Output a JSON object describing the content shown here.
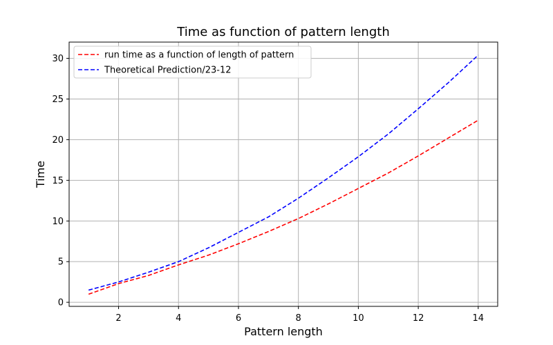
{
  "chart_data": {
    "type": "line",
    "title": "Time as function of pattern length",
    "xlabel": "Pattern length",
    "ylabel": "Time",
    "xlim": [
      0.35,
      14.65
    ],
    "ylim": [
      -0.5,
      32
    ],
    "xticks": [
      2,
      4,
      6,
      8,
      10,
      12,
      14
    ],
    "xtick_labels": [
      "2",
      "4",
      "6",
      "8",
      "10",
      "12",
      "14"
    ],
    "yticks": [
      0,
      5,
      10,
      15,
      20,
      25,
      30
    ],
    "ytick_labels": [
      "0",
      "5",
      "10",
      "15",
      "20",
      "25",
      "30"
    ],
    "grid": true,
    "legend_position": "top-left",
    "x": [
      1,
      2,
      3,
      4,
      5,
      6,
      7,
      8,
      9,
      10,
      11,
      12,
      13,
      14
    ],
    "series": [
      {
        "name": "run time as a function of length of pattern",
        "color": "#ff0000",
        "line_style": "dashed",
        "values": [
          1.0,
          2.3,
          3.3,
          4.6,
          5.8,
          7.2,
          8.7,
          10.3,
          12.1,
          14.0,
          15.9,
          18.0,
          20.2,
          22.4
        ]
      },
      {
        "name": "Theoretical Prediction/23-12",
        "color": "#0000ff",
        "line_style": "dashed",
        "values": [
          1.5,
          2.5,
          3.7,
          5.0,
          6.7,
          8.6,
          10.5,
          12.8,
          15.3,
          17.9,
          20.7,
          23.8,
          27.0,
          30.4
        ]
      }
    ]
  }
}
